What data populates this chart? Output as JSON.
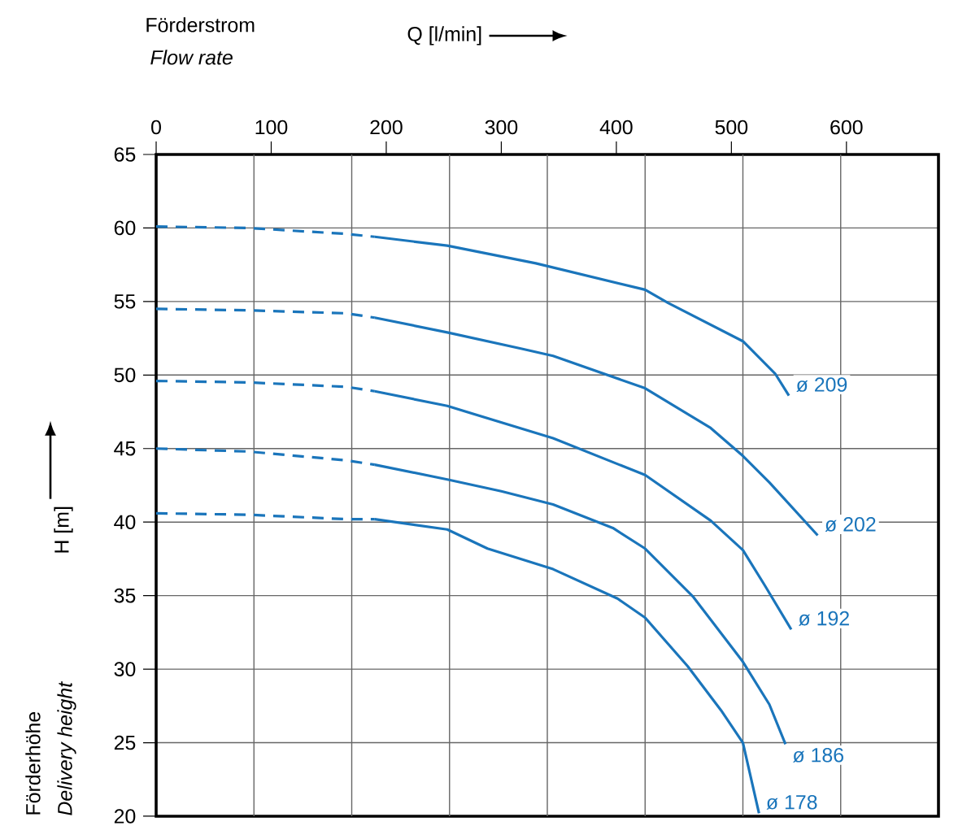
{
  "chart_data": {
    "type": "line",
    "xlabel": "Q [l/min]",
    "ylabel": "H [m]",
    "annotations": [
      "Förderstrom",
      "Flow rate",
      "Förderhöhe",
      "Delivery height"
    ],
    "xlim": [
      0,
      680
    ],
    "ylim": [
      20,
      65
    ],
    "xticks": [
      0,
      100,
      200,
      300,
      400,
      500,
      600
    ],
    "yticks": [
      20,
      25,
      30,
      35,
      40,
      45,
      50,
      55,
      60,
      65
    ],
    "grid": true,
    "series": [
      {
        "name": "ø 209",
        "color": "#1a75bb",
        "x": [
          190,
          253,
          330,
          425,
          445,
          510,
          538,
          550
        ],
        "values": [
          59.4,
          58.8,
          57.6,
          55.8,
          54.9,
          52.3,
          50.1,
          48.6
        ]
      },
      {
        "name": "ø 202",
        "color": "#1a75bb",
        "x": [
          190,
          253,
          317,
          345,
          425,
          482,
          510,
          533,
          575
        ],
        "values": [
          53.9,
          52.9,
          51.8,
          51.3,
          49.1,
          46.4,
          44.5,
          42.7,
          39.1
        ]
      },
      {
        "name": "ø 192",
        "color": "#1a75bb",
        "x": [
          190,
          253,
          345,
          425,
          482,
          510,
          529,
          552
        ],
        "values": [
          48.9,
          47.9,
          45.7,
          43.2,
          40.1,
          38.1,
          35.7,
          32.7
        ]
      },
      {
        "name": "ø 186",
        "color": "#1a75bb",
        "x": [
          190,
          253,
          300,
          345,
          397,
          425,
          467,
          510,
          533,
          547
        ],
        "values": [
          43.9,
          42.9,
          42.1,
          41.2,
          39.6,
          38.2,
          34.9,
          30.5,
          27.6,
          24.9
        ]
      },
      {
        "name": "ø 178",
        "color": "#1a75bb",
        "x": [
          190,
          253,
          288,
          345,
          401,
          425,
          462,
          491,
          510,
          524
        ],
        "values": [
          40.2,
          39.5,
          38.2,
          36.8,
          34.8,
          33.5,
          30.2,
          27.2,
          25.0,
          20.2
        ]
      },
      {
        "color": "#1a75bb",
        "line_style": "dashed",
        "x": [
          0,
          80,
          165,
          190
        ],
        "values": [
          60.1,
          60.0,
          59.6,
          59.4
        ]
      },
      {
        "color": "#1a75bb",
        "line_style": "dashed",
        "x": [
          0,
          80,
          165,
          190
        ],
        "values": [
          54.5,
          54.4,
          54.2,
          53.9
        ]
      },
      {
        "color": "#1a75bb",
        "line_style": "dashed",
        "x": [
          0,
          80,
          165,
          190
        ],
        "values": [
          49.6,
          49.5,
          49.2,
          48.9
        ]
      },
      {
        "color": "#1a75bb",
        "line_style": "dashed",
        "x": [
          0,
          80,
          165,
          190
        ],
        "values": [
          45.0,
          44.8,
          44.2,
          43.9
        ]
      },
      {
        "color": "#1a75bb",
        "line_style": "dashed",
        "x": [
          0,
          80,
          165,
          190
        ],
        "values": [
          40.6,
          40.5,
          40.2,
          40.2
        ]
      }
    ]
  }
}
